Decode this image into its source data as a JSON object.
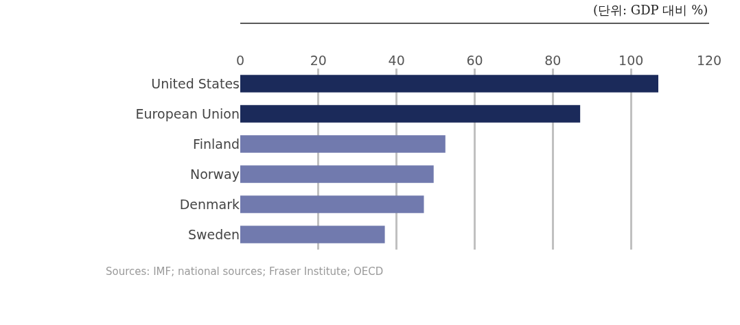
{
  "chart_data": {
    "type": "bar",
    "orientation": "horizontal",
    "categories": [
      "United States",
      "European Union",
      "Finland",
      "Norway",
      "Denmark",
      "Sweden"
    ],
    "values": [
      107,
      87,
      52.5,
      49.5,
      47,
      37
    ],
    "colors": [
      "#1b2a5a",
      "#1b2a5a",
      "#717aae",
      "#717aae",
      "#717aae",
      "#717aae"
    ],
    "xlim": [
      0,
      120
    ],
    "xticks": [
      0,
      20,
      40,
      60,
      80,
      100,
      120
    ],
    "grid": "x",
    "annotations": [
      "(단위: GDP 대비 %)",
      "Sources: IMF; national sources; Fraser Institute; OECD"
    ]
  }
}
